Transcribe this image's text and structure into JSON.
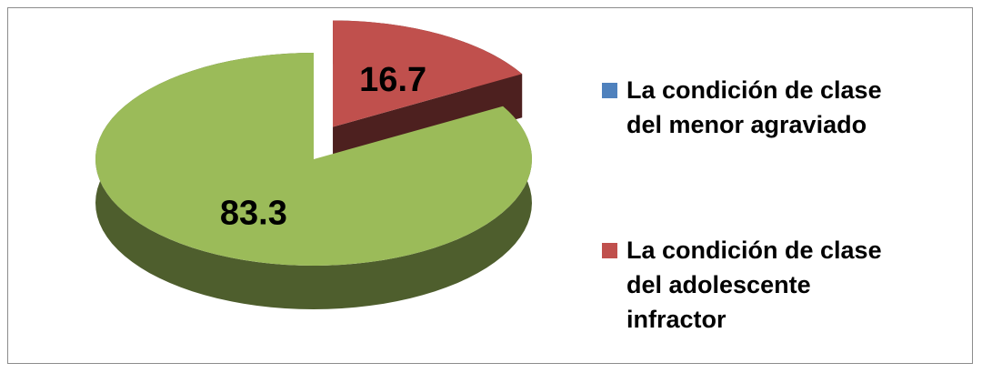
{
  "chart_data": {
    "type": "pie3d",
    "categories": [
      "La condición de clase del menor agraviado",
      "La condición de clase del adolescente infractor",
      null
    ],
    "values": [
      0,
      16.7,
      83.3
    ],
    "colors": [
      "#4f81bd",
      "#c0504d",
      "#9bbb59"
    ],
    "legend": "right"
  }
}
